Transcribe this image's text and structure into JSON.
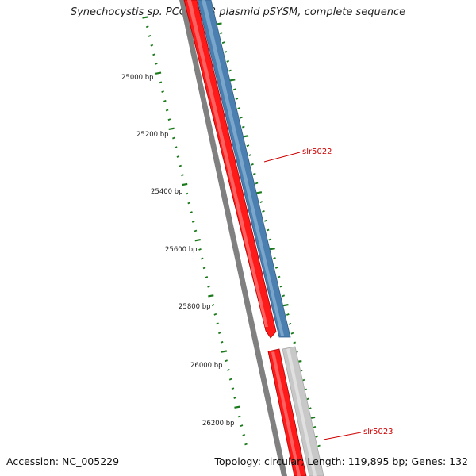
{
  "title": "Synechocystis sp. PCC 6803 plasmid pSYSM, complete sequence",
  "footer": {
    "accession": "Accession: NC_005229",
    "summary": "Topology: circular; Length: 119,895 bp; Genes: 132"
  },
  "ruler_labels": [
    "25000 bp",
    "25200 bp",
    "25400 bp",
    "25600 bp",
    "25800 bp",
    "26000 bp",
    "26200 bp"
  ],
  "genes": [
    {
      "name": "slr5022",
      "label_color": "#d00000"
    },
    {
      "name": "slr5023",
      "label_color": "#d00000"
    }
  ],
  "colors": {
    "forward_gene": "#ff0000",
    "blue_gene": "#4a7fb0",
    "grey_gene": "#c8c8c8",
    "backbone": "#808080",
    "gc_ticks": "#1a7a1a"
  }
}
